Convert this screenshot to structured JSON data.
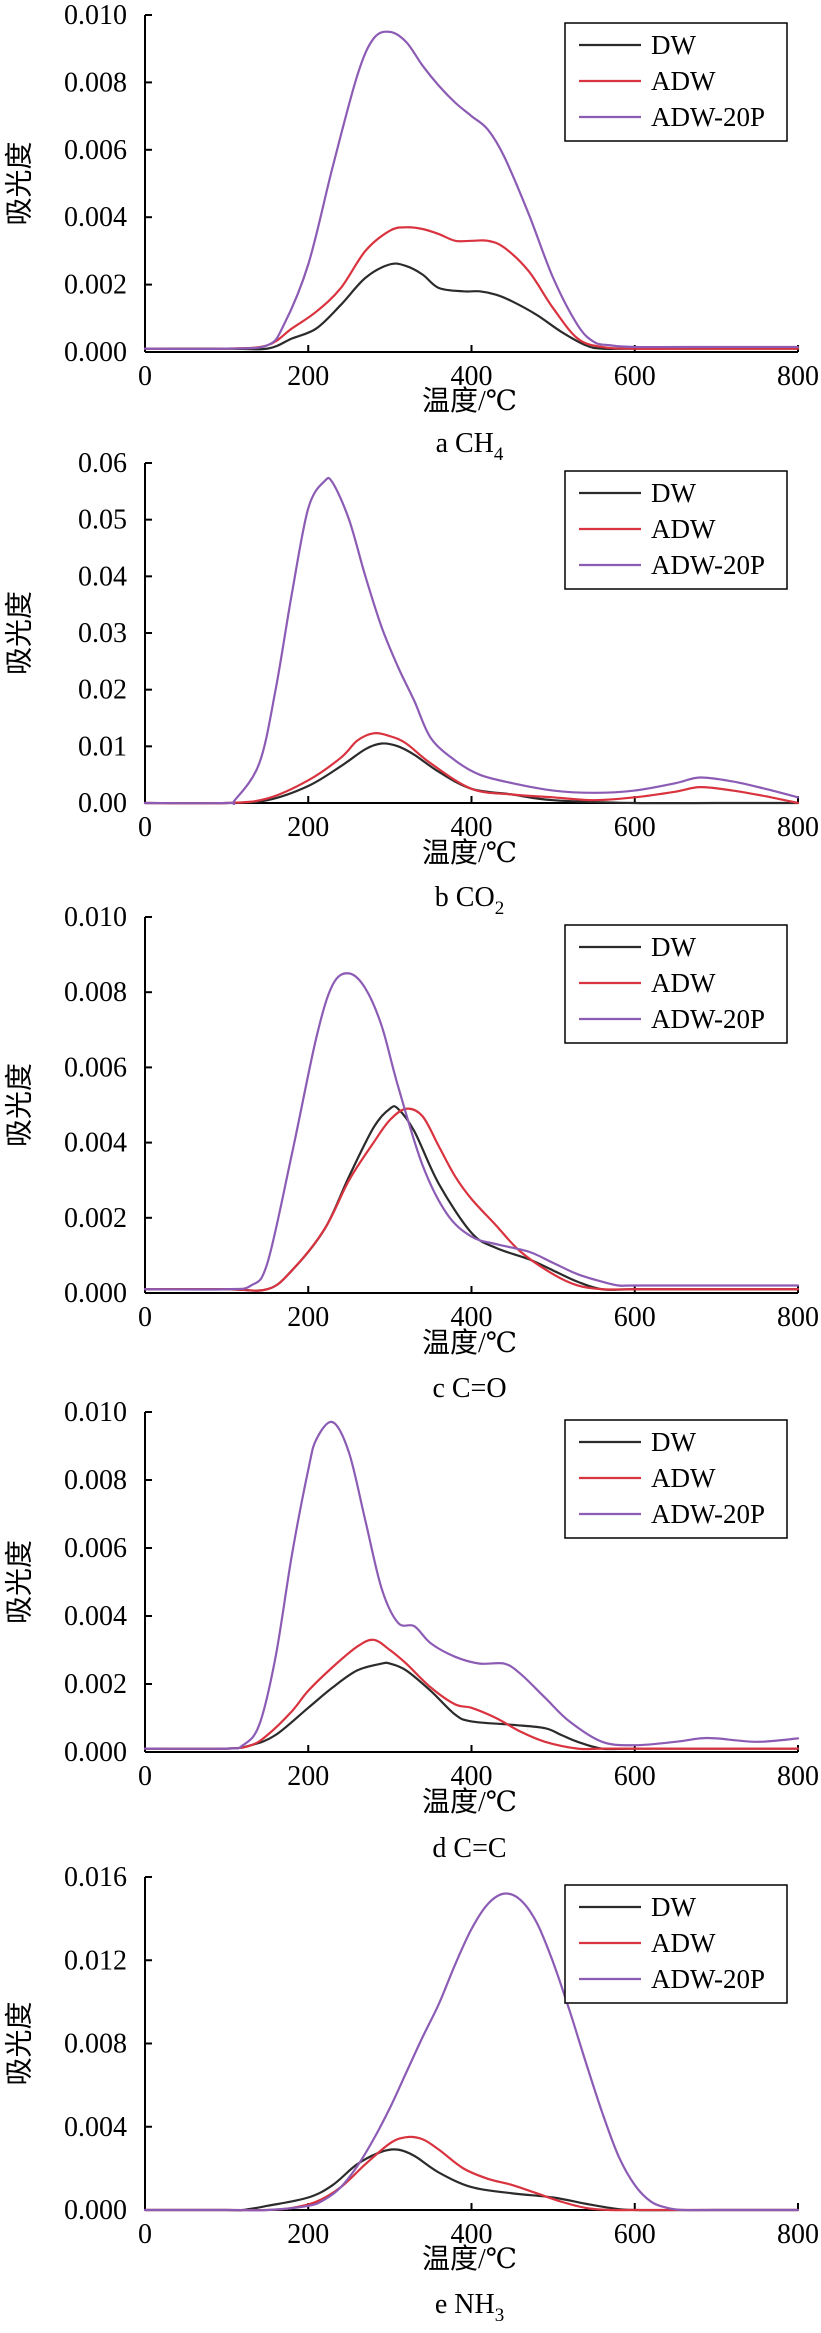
{
  "chart_data": [
    {
      "type": "line",
      "caption": "a CH",
      "caption_sub": "4",
      "xlabel": "温度/℃",
      "ylabel": "吸光度",
      "xlim": [
        0,
        800
      ],
      "ylim": [
        0,
        0.01
      ],
      "xticks": [
        "0",
        "200",
        "400",
        "600",
        "800"
      ],
      "yticks": [
        "0.000",
        "0.002",
        "0.004",
        "0.006",
        "0.008",
        "0.010"
      ],
      "yticks_values": [
        0,
        0.002,
        0.004,
        0.006,
        0.008,
        0.01
      ],
      "legend": "top-right",
      "series": [
        {
          "name": "DW",
          "color": "#2b2b2b",
          "x": [
            0,
            100,
            150,
            180,
            210,
            240,
            270,
            300,
            320,
            340,
            360,
            390,
            410,
            430,
            450,
            480,
            510,
            540,
            560,
            600,
            700,
            800
          ],
          "y": [
            0.0001,
            0.0001,
            0.0001,
            0.0004,
            0.0007,
            0.0014,
            0.0022,
            0.0026,
            0.00255,
            0.0023,
            0.0019,
            0.0018,
            0.0018,
            0.0017,
            0.0015,
            0.0011,
            0.0006,
            0.0002,
            0.0001,
            0.0001,
            0.0001,
            0.0001
          ]
        },
        {
          "name": "ADW",
          "color": "#d9333f",
          "x": [
            0,
            100,
            150,
            180,
            210,
            240,
            270,
            300,
            320,
            340,
            360,
            380,
            400,
            420,
            440,
            470,
            500,
            530,
            560,
            600,
            700,
            800
          ],
          "y": [
            0.0001,
            0.0001,
            0.0002,
            0.0007,
            0.0012,
            0.0019,
            0.003,
            0.0036,
            0.0037,
            0.00365,
            0.0035,
            0.0033,
            0.0033,
            0.0033,
            0.0031,
            0.0024,
            0.0013,
            0.0004,
            0.00015,
            0.0001,
            0.0001,
            0.0001
          ]
        },
        {
          "name": "ADW-20P",
          "color": "#8c5cb5",
          "x": [
            0,
            100,
            150,
            170,
            200,
            230,
            260,
            280,
            300,
            320,
            340,
            360,
            380,
            400,
            420,
            440,
            470,
            500,
            530,
            550,
            570,
            600,
            700,
            800
          ],
          "y": [
            0.0001,
            0.0001,
            0.0002,
            0.0008,
            0.0026,
            0.0055,
            0.0082,
            0.0093,
            0.0095,
            0.0092,
            0.0085,
            0.0079,
            0.0074,
            0.007,
            0.0066,
            0.0058,
            0.0041,
            0.0022,
            0.0008,
            0.0003,
            0.0002,
            0.00015,
            0.00015,
            0.00015
          ]
        }
      ]
    },
    {
      "type": "line",
      "caption": "b CO",
      "caption_sub": "2",
      "xlabel": "温度/℃",
      "ylabel": "吸光度",
      "xlim": [
        0,
        800
      ],
      "ylim": [
        0,
        0.06
      ],
      "xticks": [
        "0",
        "200",
        "400",
        "600",
        "800"
      ],
      "yticks": [
        "0.00",
        "0.01",
        "0.02",
        "0.03",
        "0.04",
        "0.05",
        "0.06"
      ],
      "yticks_values": [
        0,
        0.01,
        0.02,
        0.03,
        0.04,
        0.05,
        0.06
      ],
      "legend": "top-right",
      "series": [
        {
          "name": "DW",
          "color": "#2b2b2b",
          "x": [
            0,
            100,
            150,
            200,
            240,
            270,
            290,
            310,
            330,
            360,
            400,
            450,
            500,
            600,
            700,
            800
          ],
          "y": [
            0,
            0,
            0.0005,
            0.003,
            0.0065,
            0.0095,
            0.0105,
            0.01,
            0.0085,
            0.0055,
            0.0025,
            0.0015,
            0.0005,
            0,
            0,
            0
          ]
        },
        {
          "name": "ADW",
          "color": "#d9333f",
          "x": [
            0,
            100,
            150,
            200,
            240,
            260,
            280,
            300,
            320,
            350,
            400,
            450,
            500,
            550,
            600,
            650,
            680,
            720,
            760,
            800
          ],
          "y": [
            0,
            0,
            0.0008,
            0.004,
            0.008,
            0.011,
            0.0123,
            0.0118,
            0.0105,
            0.007,
            0.0025,
            0.0015,
            0.001,
            0.0005,
            0.001,
            0.002,
            0.0028,
            0.0022,
            0.0012,
            0
          ]
        },
        {
          "name": "ADW-20P",
          "color": "#8c5cb5",
          "x": [
            0,
            100,
            110,
            140,
            160,
            180,
            200,
            220,
            230,
            250,
            270,
            290,
            310,
            330,
            350,
            380,
            410,
            450,
            500,
            550,
            600,
            650,
            680,
            720,
            760,
            800
          ],
          "y": [
            0,
            0,
            0.0005,
            0.007,
            0.02,
            0.037,
            0.052,
            0.0568,
            0.0565,
            0.05,
            0.04,
            0.031,
            0.024,
            0.018,
            0.0115,
            0.0075,
            0.005,
            0.0035,
            0.0022,
            0.0018,
            0.0022,
            0.0035,
            0.0045,
            0.0038,
            0.0025,
            0.001
          ]
        }
      ]
    },
    {
      "type": "line",
      "caption": "c C=O",
      "caption_sub": "",
      "xlabel": "温度/℃",
      "ylabel": "吸光度",
      "xlim": [
        0,
        800
      ],
      "ylim": [
        0,
        0.01
      ],
      "xticks": [
        "0",
        "200",
        "400",
        "600",
        "800"
      ],
      "yticks": [
        "0.000",
        "0.002",
        "0.004",
        "0.006",
        "0.008",
        "0.010"
      ],
      "yticks_values": [
        0,
        0.002,
        0.004,
        0.006,
        0.008,
        0.01
      ],
      "legend": "top-right",
      "series": [
        {
          "name": "DW",
          "color": "#2b2b2b",
          "x": [
            0,
            100,
            150,
            180,
            220,
            250,
            280,
            300,
            310,
            330,
            360,
            400,
            430,
            470,
            500,
            530,
            560,
            600,
            700,
            800
          ],
          "y": [
            0.0001,
            0.0001,
            0.0001,
            0.0006,
            0.0017,
            0.0031,
            0.0044,
            0.0049,
            0.0049,
            0.0043,
            0.0029,
            0.0016,
            0.0012,
            0.0009,
            0.0006,
            0.0003,
            0.0001,
            0.0001,
            0.0001,
            0.0001
          ]
        },
        {
          "name": "ADW",
          "color": "#d9333f",
          "x": [
            0,
            100,
            150,
            180,
            220,
            250,
            280,
            300,
            320,
            340,
            360,
            380,
            400,
            430,
            460,
            500,
            530,
            560,
            600,
            700,
            800
          ],
          "y": [
            0.0001,
            0.0001,
            0.0001,
            0.0006,
            0.0017,
            0.003,
            0.004,
            0.0046,
            0.0049,
            0.0047,
            0.0039,
            0.0031,
            0.0025,
            0.0018,
            0.0011,
            0.0005,
            0.0002,
            0.0001,
            0.0001,
            0.0001,
            0.0001
          ]
        },
        {
          "name": "ADW-20P",
          "color": "#8c5cb5",
          "x": [
            0,
            100,
            130,
            150,
            180,
            210,
            230,
            250,
            270,
            290,
            310,
            340,
            370,
            400,
            430,
            470,
            500,
            530,
            560,
            580,
            600,
            700,
            800
          ],
          "y": [
            0.0001,
            0.0001,
            0.0002,
            0.0008,
            0.0037,
            0.0068,
            0.0082,
            0.0085,
            0.0081,
            0.0071,
            0.0055,
            0.0034,
            0.0021,
            0.0015,
            0.0013,
            0.0011,
            0.0008,
            0.0005,
            0.0003,
            0.0002,
            0.0002,
            0.0002,
            0.0002
          ]
        }
      ]
    },
    {
      "type": "line",
      "caption": "d C=C",
      "caption_sub": "",
      "xlabel": "温度/℃",
      "ylabel": "吸光度",
      "xlim": [
        0,
        800
      ],
      "ylim": [
        0,
        0.01
      ],
      "xticks": [
        "0",
        "200",
        "400",
        "600",
        "800"
      ],
      "yticks": [
        "0.000",
        "0.002",
        "0.004",
        "0.006",
        "0.008",
        "0.010"
      ],
      "yticks_values": [
        0,
        0.002,
        0.004,
        0.006,
        0.008,
        0.01
      ],
      "legend": "top-right",
      "series": [
        {
          "name": "DW",
          "color": "#2b2b2b",
          "x": [
            0,
            100,
            130,
            160,
            200,
            230,
            260,
            290,
            300,
            320,
            350,
            380,
            400,
            450,
            490,
            510,
            530,
            560,
            600,
            700,
            800
          ],
          "y": [
            0.0001,
            0.0001,
            0.0002,
            0.0005,
            0.0013,
            0.0019,
            0.0024,
            0.0026,
            0.0026,
            0.0024,
            0.0018,
            0.0011,
            0.0009,
            0.0008,
            0.0007,
            0.0005,
            0.0003,
            0.0001,
            0.0001,
            0.0001,
            0.0001
          ]
        },
        {
          "name": "ADW",
          "color": "#d9333f",
          "x": [
            0,
            100,
            130,
            150,
            180,
            200,
            230,
            260,
            280,
            300,
            320,
            350,
            380,
            400,
            430,
            460,
            490,
            530,
            560,
            600,
            700,
            800
          ],
          "y": [
            0.0001,
            0.0001,
            0.0002,
            0.0005,
            0.0012,
            0.0018,
            0.0025,
            0.0031,
            0.0033,
            0.003,
            0.0026,
            0.0019,
            0.0014,
            0.0013,
            0.001,
            0.0006,
            0.0003,
            0.0001,
            0.0001,
            0.0001,
            0.0001,
            0.0001
          ]
        },
        {
          "name": "ADW-20P",
          "color": "#8c5cb5",
          "x": [
            0,
            100,
            120,
            140,
            160,
            180,
            200,
            210,
            230,
            250,
            270,
            290,
            310,
            330,
            350,
            380,
            410,
            440,
            460,
            490,
            520,
            560,
            600,
            650,
            680,
            700,
            750,
            800
          ],
          "y": [
            0.0001,
            0.0001,
            0.0002,
            0.0008,
            0.0028,
            0.0058,
            0.0083,
            0.0092,
            0.0097,
            0.0088,
            0.0068,
            0.0048,
            0.0038,
            0.0037,
            0.0032,
            0.0028,
            0.0026,
            0.0026,
            0.0023,
            0.0016,
            0.0009,
            0.0003,
            0.0002,
            0.0003,
            0.0004,
            0.0004,
            0.0003,
            0.0004
          ]
        }
      ]
    },
    {
      "type": "line",
      "caption": "e NH",
      "caption_sub": "3",
      "xlabel": "温度/℃",
      "ylabel": "吸光度",
      "xlim": [
        0,
        800
      ],
      "ylim": [
        0,
        0.016
      ],
      "xticks": [
        "0",
        "200",
        "400",
        "600",
        "800"
      ],
      "yticks": [
        "0.000",
        "0.004",
        "0.008",
        "0.012",
        "0.016"
      ],
      "yticks_values": [
        0,
        0.004,
        0.008,
        0.012,
        0.016
      ],
      "legend": "top-right",
      "series": [
        {
          "name": "DW",
          "color": "#2b2b2b",
          "x": [
            0,
            100,
            120,
            150,
            200,
            230,
            260,
            290,
            310,
            330,
            360,
            400,
            450,
            500,
            540,
            570,
            600,
            700,
            800
          ],
          "y": [
            0,
            0,
            0,
            0.0002,
            0.0006,
            0.0012,
            0.0022,
            0.0028,
            0.0029,
            0.0026,
            0.0018,
            0.0011,
            0.0008,
            0.0006,
            0.0003,
            0.0001,
            0,
            0,
            0
          ]
        },
        {
          "name": "ADW",
          "color": "#d9333f",
          "x": [
            0,
            100,
            150,
            180,
            210,
            240,
            270,
            300,
            320,
            340,
            360,
            390,
            420,
            450,
            480,
            510,
            540,
            570,
            600,
            700,
            800
          ],
          "y": [
            0,
            0,
            0,
            0.0001,
            0.0004,
            0.0011,
            0.0022,
            0.0032,
            0.0035,
            0.0034,
            0.0029,
            0.002,
            0.0015,
            0.0012,
            0.0008,
            0.0004,
            0.0001,
            0,
            0,
            0,
            0
          ]
        },
        {
          "name": "ADW-20P",
          "color": "#8c5cb5",
          "x": [
            0,
            100,
            150,
            200,
            220,
            240,
            260,
            280,
            300,
            320,
            340,
            360,
            380,
            400,
            420,
            440,
            460,
            480,
            500,
            520,
            540,
            560,
            580,
            600,
            620,
            640,
            660,
            700,
            800
          ],
          "y": [
            0,
            0,
            0,
            0.0002,
            0.0005,
            0.0011,
            0.0021,
            0.0034,
            0.0049,
            0.0066,
            0.0083,
            0.0099,
            0.0118,
            0.0135,
            0.0147,
            0.0152,
            0.0149,
            0.0138,
            0.0119,
            0.0096,
            0.0071,
            0.0047,
            0.0026,
            0.0012,
            0.0004,
            0.0001,
            0,
            0,
            0
          ]
        }
      ]
    }
  ]
}
